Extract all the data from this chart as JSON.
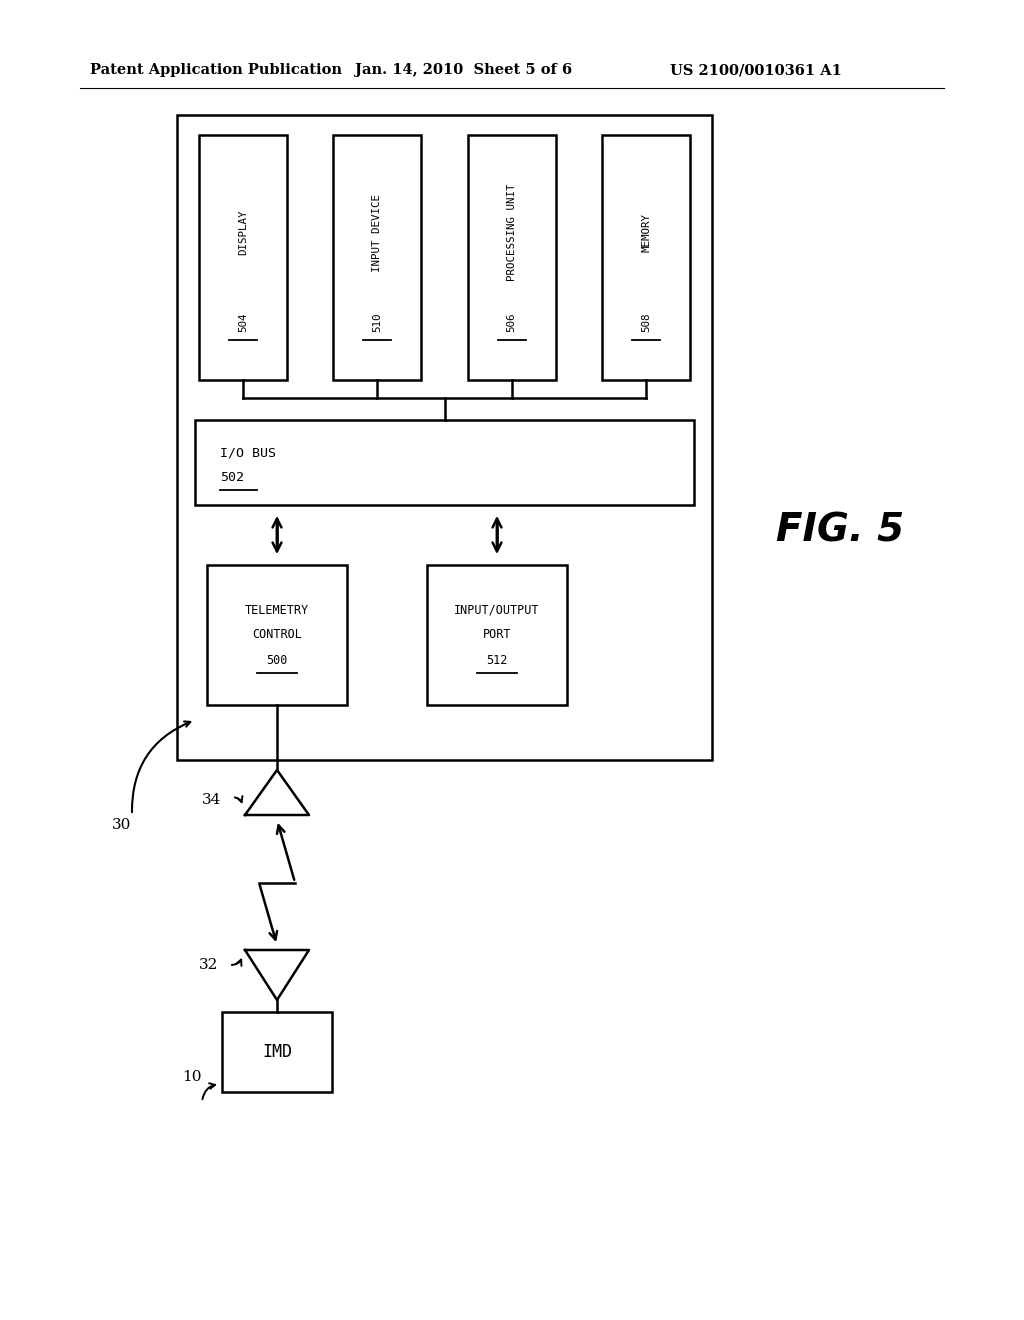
{
  "background_color": "#ffffff",
  "header_left": "Patent Application Publication",
  "header_mid": "Jan. 14, 2010  Sheet 5 of 6",
  "header_right": "US 2100/0010361 A1",
  "fig_label": "FIG. 5",
  "lw": 1.8
}
